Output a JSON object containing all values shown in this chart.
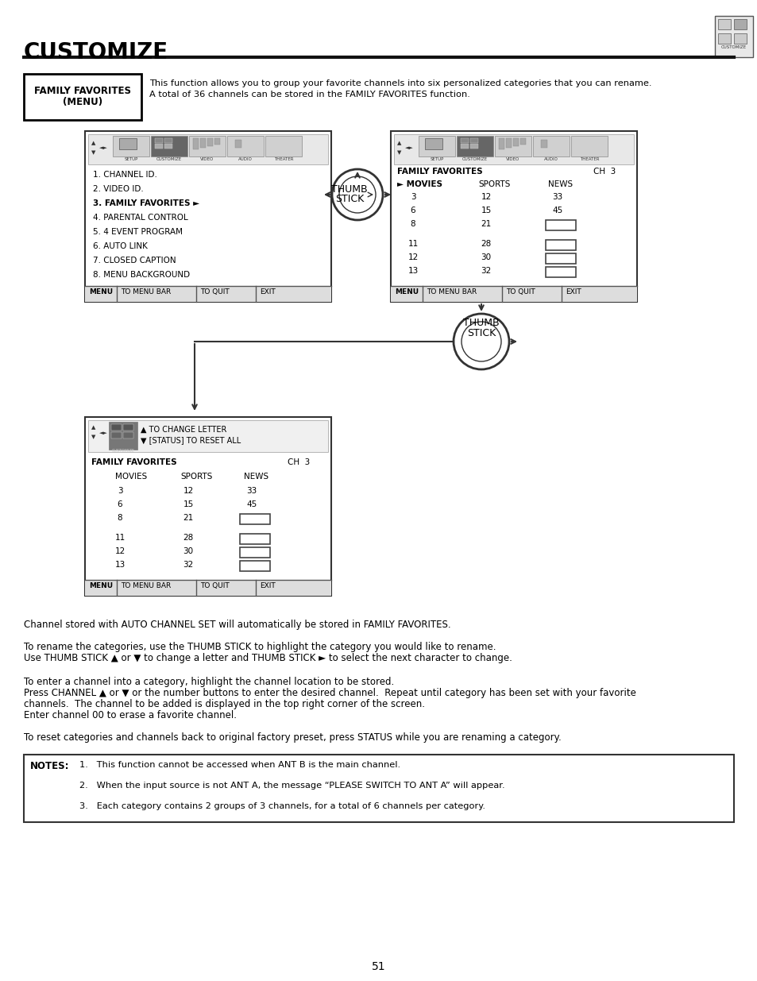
{
  "title": "CUSTOMIZE",
  "bg_color": "#ffffff",
  "text_color": "#000000",
  "page_number": "51",
  "family_favorites_label_line1": "FAMILY FAVORITES",
  "family_favorites_label_line2": "(MENU)",
  "family_favorites_desc_line1": "This function allows you to group your favorite channels into six personalized categories that you can rename.",
  "family_favorites_desc_line2": "A total of 36 channels can be stored in the FAMILY FAVORITES function.",
  "menu_list": [
    "1. CHANNEL ID.",
    "2. VIDEO ID.",
    "3. FAMILY FAVORITES ►",
    "4. PARENTAL CONTROL",
    "5. 4 EVENT PROGRAM",
    "6. AUTO LINK",
    "7. CLOSED CAPTION",
    "8. MENU BACKGROUND"
  ],
  "icon_labels": [
    "SETUP",
    "CUSTOMIZE",
    "VIDEO",
    "AUDIO",
    "THEATER"
  ],
  "fav_cols": [
    "► MOVIES",
    "SPORTS",
    "NEWS"
  ],
  "fav_data": [
    [
      "3",
      "12",
      "33"
    ],
    [
      "6",
      "15",
      "45"
    ],
    [
      "8",
      "21",
      ""
    ],
    [
      "11",
      "28",
      ""
    ],
    [
      "12",
      "30",
      ""
    ],
    [
      "13",
      "32",
      ""
    ]
  ],
  "thumb_stick_label1": "THUMB\nSTICK",
  "thumb_stick_label2": "THUMB\nSTICK",
  "screen3_header1": "▲ TO CHANGE LETTER",
  "screen3_header2": "▼ [STATUS] TO RESET ALL",
  "screen3_title_left": "FAMILY FAVORITES",
  "screen3_title_right": "CH  3",
  "screen3_cols": [
    "MOVIES",
    "SPORTS",
    "NEWS"
  ],
  "screen3_data": [
    [
      "3",
      "12",
      "33"
    ],
    [
      "6",
      "15",
      "45"
    ],
    [
      "8",
      "21",
      ""
    ],
    [
      "11",
      "28",
      ""
    ],
    [
      "12",
      "30",
      ""
    ],
    [
      "13",
      "32",
      ""
    ]
  ],
  "para1": "Channel stored with AUTO CHANNEL SET will automatically be stored in FAMILY FAVORITES.",
  "para2_line1": "To rename the categories, use the THUMB STICK to highlight the category you would like to rename.",
  "para2_line2": "Use THUMB STICK ▲ or ▼ to change a letter and THUMB STICK ► to select the next character to change.",
  "para3_line1": "To enter a channel into a category, highlight the channel location to be stored.",
  "para3_line2": "Press CHANNEL ▲ or ▼ or the number buttons to enter the desired channel.  Repeat until category has been set with your favorite",
  "para3_line3": "channels.  The channel to be added is displayed in the top right corner of the screen.",
  "para3_line4": "Enter channel 00 to erase a favorite channel.",
  "para4": "To reset categories and channels back to original factory preset, press STATUS while you are renaming a category.",
  "notes_label": "NOTES:",
  "notes": [
    "1.   This function cannot be accessed when ANT B is the main channel.",
    "2.   When the input source is not ANT A, the message “PLEASE SWITCH TO ANT A” will appear.",
    "3.   Each category contains 2 groups of 3 channels, for a total of 6 channels per category."
  ]
}
